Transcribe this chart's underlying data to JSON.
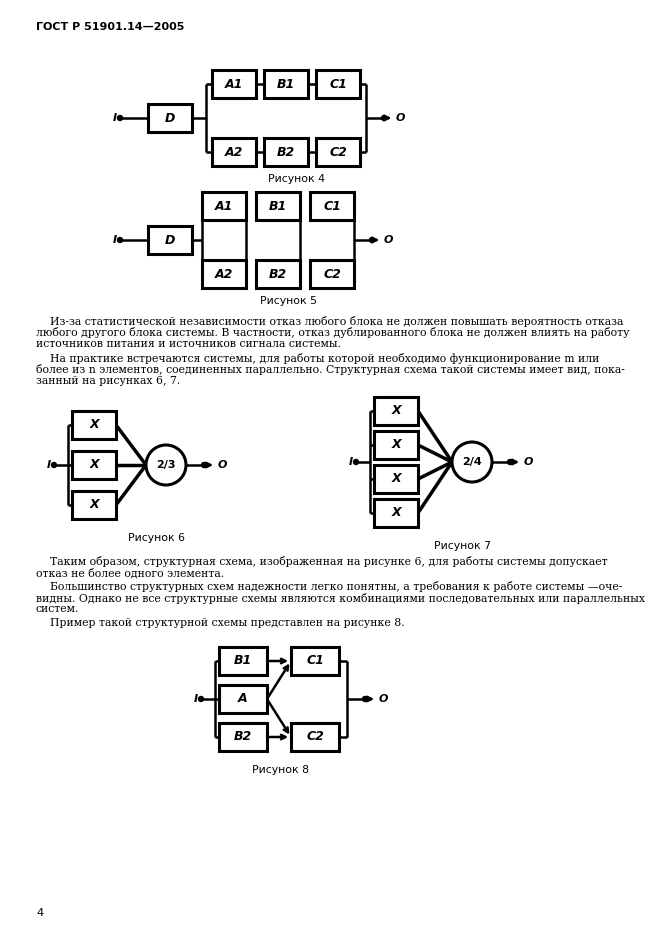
{
  "background": "#ffffff",
  "header_text": "ГОСТ Р 51901.14—2005",
  "page_number": "4",
  "fig4_caption": "Рисунок 4",
  "fig5_caption": "Рисунок 5",
  "fig6_caption": "Рисунок 6",
  "fig7_caption": "Рисунок 7",
  "fig8_caption": "Рисунок 8",
  "p1_line1": "    Из-за статистической независимости отказ любого блока не должен повышать вероятность отказа",
  "p1_line2": "любого другого блока системы. В частности, отказ дублированного блока не должен влиять на работу",
  "p1_line3": "источников питания и источников сигнала системы.",
  "p2_line1": "    На практике встречаются системы, для работы которой необходимо функционирование m или",
  "p2_line2": "более из n элементов, соединенных параллельно. Структурная схема такой системы имеет вид, пока-",
  "p2_line3": "занный на рисунках 6, 7.",
  "p3_line1": "    Таким образом, структурная схема, изображенная на рисунке 6, для работы системы допускает",
  "p3_line2": "отказ не более одного элемента.",
  "p4_line1": "    Большинство структурных схем надежности легко понятны, а требования к работе системы —оче-",
  "p4_line2": "видны. Однако не все структурные схемы являются комбинациями последовательных или параллельных",
  "p4_line3": "систем.",
  "p5_line1": "    Пример такой структурной схемы представлен на рисунке 8."
}
